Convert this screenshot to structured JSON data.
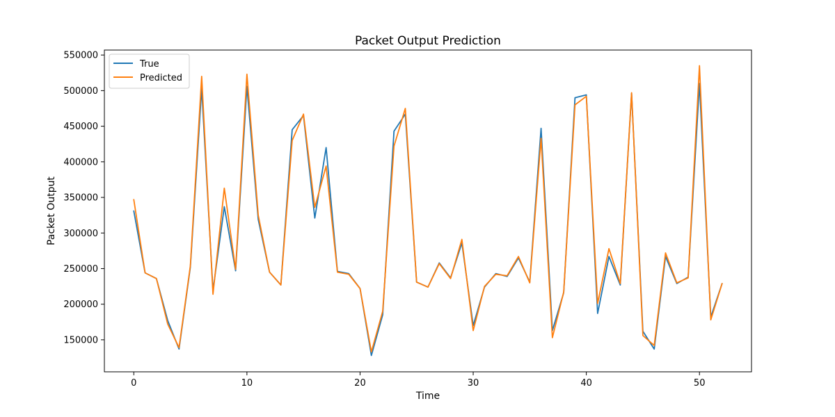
{
  "chart_data": {
    "type": "line",
    "title": "Packet Output Prediction",
    "xlabel": "Time",
    "ylabel": "Packet Output",
    "xlim": [
      -2.6,
      54.6
    ],
    "ylim": [
      105000,
      557000
    ],
    "xticks": [
      0,
      10,
      20,
      30,
      40,
      50
    ],
    "yticks": [
      150000,
      200000,
      250000,
      300000,
      350000,
      400000,
      450000,
      500000,
      550000
    ],
    "legend_position": "top-left",
    "x": [
      0,
      1,
      2,
      3,
      4,
      5,
      6,
      7,
      8,
      9,
      10,
      11,
      12,
      13,
      14,
      15,
      16,
      17,
      18,
      19,
      20,
      21,
      22,
      23,
      24,
      25,
      26,
      27,
      28,
      29,
      30,
      31,
      32,
      33,
      34,
      35,
      36,
      37,
      38,
      39,
      40,
      41,
      42,
      43,
      44,
      45,
      46,
      47,
      48,
      49,
      50,
      51,
      52
    ],
    "series": [
      {
        "name": "True",
        "color": "#1f77b4",
        "values": [
          331000,
          244000,
          236000,
          177000,
          137000,
          252000,
          503000,
          219000,
          337000,
          247000,
          506000,
          319000,
          245000,
          227000,
          445000,
          465000,
          321000,
          420000,
          246000,
          243000,
          222000,
          128000,
          185000,
          443000,
          467000,
          231000,
          224000,
          258000,
          237000,
          286000,
          170000,
          224000,
          243000,
          239000,
          265000,
          231000,
          447000,
          163000,
          216000,
          490000,
          494000,
          187000,
          267000,
          227000,
          496000,
          162000,
          137000,
          267000,
          229000,
          238000,
          510000,
          182000,
          229000
        ]
      },
      {
        "name": "Predicted",
        "color": "#ff7f0e",
        "values": [
          347000,
          244000,
          236000,
          172000,
          139000,
          254000,
          520000,
          214000,
          363000,
          249000,
          523000,
          325000,
          245000,
          227000,
          430000,
          467000,
          336000,
          394000,
          245000,
          242000,
          222000,
          133000,
          190000,
          422000,
          475000,
          231000,
          224000,
          257000,
          236000,
          291000,
          163000,
          225000,
          242000,
          240000,
          267000,
          230000,
          433000,
          153000,
          217000,
          480000,
          492000,
          201000,
          278000,
          229000,
          497000,
          156000,
          142000,
          272000,
          230000,
          237000,
          535000,
          178000,
          229000
        ]
      }
    ]
  }
}
